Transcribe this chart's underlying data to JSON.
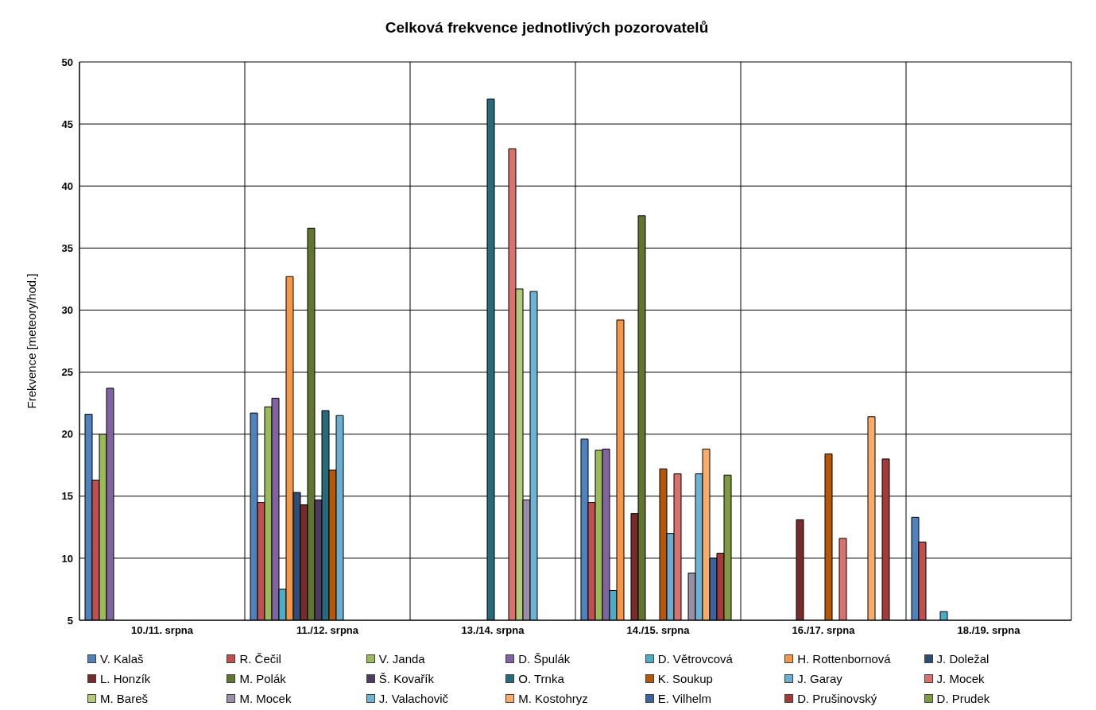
{
  "chart_data": {
    "type": "bar",
    "title": "Celková frekvence jednotlivých pozorovatelů",
    "ylabel": "Frekvence [meteory/hod.]",
    "categories": [
      "10./11. srpna",
      "11./12. srpna",
      "13./14. srpna",
      "14./15. srpna",
      "16./17. srpna",
      "18./19. srpna"
    ],
    "ylim": [
      5,
      50
    ],
    "yticks": [
      5,
      10,
      15,
      20,
      25,
      30,
      35,
      40,
      45,
      50
    ],
    "grid": true,
    "legend": "bottom",
    "series": [
      {
        "name": "V. Kalaš",
        "color": "#4f81bd",
        "values": [
          21.6,
          21.7,
          null,
          19.6,
          null,
          13.3
        ]
      },
      {
        "name": "R. Čečil",
        "color": "#c0504d",
        "values": [
          16.3,
          14.5,
          null,
          14.5,
          null,
          11.3
        ]
      },
      {
        "name": "V. Janda",
        "color": "#9bbb59",
        "values": [
          20.0,
          22.2,
          null,
          18.7,
          null,
          null
        ]
      },
      {
        "name": "D. Špulák",
        "color": "#8064a2",
        "values": [
          23.7,
          22.9,
          null,
          18.8,
          null,
          null
        ]
      },
      {
        "name": "D. Větrovcová",
        "color": "#4bacc6",
        "values": [
          null,
          7.5,
          null,
          7.4,
          null,
          5.7
        ]
      },
      {
        "name": "H. Rottenbornová",
        "color": "#f79646",
        "values": [
          null,
          32.7,
          null,
          29.2,
          null,
          null
        ]
      },
      {
        "name": "J. Doležal",
        "color": "#2c4d75",
        "values": [
          null,
          15.3,
          null,
          null,
          null,
          null
        ]
      },
      {
        "name": "L. Honzík",
        "color": "#772c2a",
        "values": [
          null,
          14.3,
          null,
          13.6,
          13.1,
          null
        ]
      },
      {
        "name": "M. Polák",
        "color": "#5f7530",
        "values": [
          null,
          36.6,
          null,
          37.6,
          null,
          null
        ]
      },
      {
        "name": "Š. Kovařík",
        "color": "#4d3b62",
        "values": [
          null,
          14.7,
          null,
          null,
          null,
          null
        ]
      },
      {
        "name": "O. Trnka",
        "color": "#276a7c",
        "values": [
          null,
          21.9,
          47.0,
          null,
          null,
          null
        ]
      },
      {
        "name": "K. Soukup",
        "color": "#b65708",
        "values": [
          null,
          17.1,
          null,
          17.2,
          18.4,
          null
        ]
      },
      {
        "name": "J. Garay",
        "color": "#6aaed0",
        "values": [
          null,
          21.5,
          null,
          12.0,
          null,
          null
        ]
      },
      {
        "name": "J. Mocek",
        "color": "#d9726f",
        "values": [
          null,
          null,
          43.0,
          16.8,
          11.6,
          null
        ]
      },
      {
        "name": "M. Bareš",
        "color": "#b3ca7d",
        "values": [
          null,
          null,
          31.7,
          null,
          null,
          null
        ]
      },
      {
        "name": "M. Mocek",
        "color": "#9a8fa6",
        "values": [
          null,
          null,
          14.7,
          8.8,
          null,
          null
        ]
      },
      {
        "name": "J. Valachovič",
        "color": "#6db3d6",
        "values": [
          null,
          null,
          31.5,
          16.8,
          null,
          null
        ]
      },
      {
        "name": "M. Kostohryz",
        "color": "#f9ab6a",
        "values": [
          null,
          null,
          null,
          18.8,
          21.4,
          null
        ]
      },
      {
        "name": "E. Vilhelm",
        "color": "#3a64a0",
        "values": [
          null,
          null,
          null,
          10.0,
          null,
          null
        ]
      },
      {
        "name": "D. Prušinovský",
        "color": "#a33b39",
        "values": [
          null,
          null,
          null,
          10.4,
          18.0,
          null
        ]
      },
      {
        "name": "D. Prudek",
        "color": "#7f9a40",
        "values": [
          null,
          null,
          null,
          16.7,
          null,
          null
        ]
      }
    ]
  }
}
